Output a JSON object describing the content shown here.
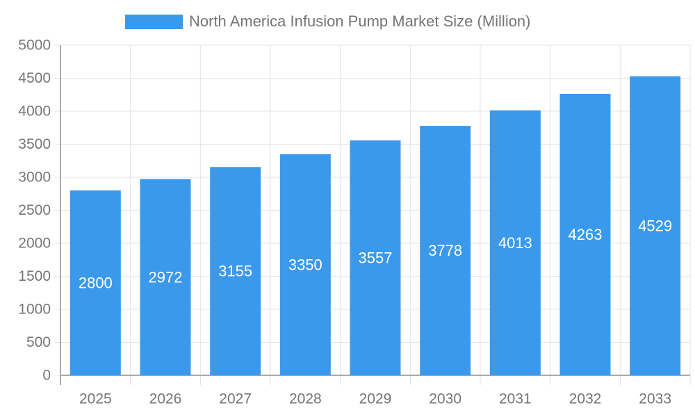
{
  "legend": {
    "label": "North America Infusion Pump Market Size (Million)"
  },
  "chart_data": {
    "type": "bar",
    "title": "North America Infusion Pump Market Size (Million)",
    "categories": [
      "2025",
      "2026",
      "2027",
      "2028",
      "2029",
      "2030",
      "2031",
      "2032",
      "2033"
    ],
    "values": [
      2800,
      2972,
      3155,
      3350,
      3557,
      3778,
      4013,
      4263,
      4529
    ],
    "xlabel": "",
    "ylabel": "",
    "ylim": [
      0,
      5000
    ],
    "ytick_step": 500,
    "ytick_labels": [
      "0",
      "500",
      "1000",
      "1500",
      "2000",
      "2500",
      "3000",
      "3500",
      "4000",
      "4500",
      "5000"
    ],
    "grid": true,
    "legend_position": "top",
    "bar_label_position": "inside-center",
    "bar_color": "#3B99EC",
    "bar_label_color": "#FFFFFF",
    "axis_text_color": "#757575",
    "grid_color": "#E3E3E3",
    "axis_line_color": "#A9A9A9",
    "tick_color": "#DDDDDD"
  }
}
